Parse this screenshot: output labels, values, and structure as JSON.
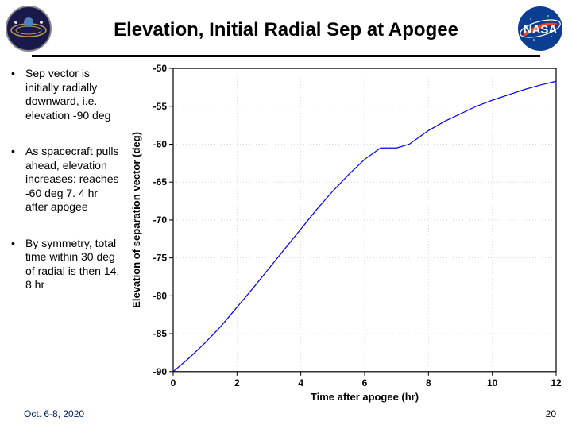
{
  "title": "Elevation, Initial Radial Sep at Apogee",
  "bullets": [
    "Sep vector is initially radially downward, i.e. elevation -90 deg",
    "As spacecraft pulls ahead, elevation increases: reaches -60 deg 7. 4 hr after apogee",
    "By symmetry, total time within 30 deg of radial is then 14. 8 hr"
  ],
  "footer_date": "Oct. 6-8, 2020",
  "page_number": "20",
  "chart": {
    "type": "line",
    "xlabel": "Time after apogee (hr)",
    "ylabel": "Elevation of separation vector (deg)",
    "xlim": [
      0,
      12
    ],
    "ylim": [
      -90,
      -50
    ],
    "xtick_step": 2,
    "ytick_step": 5,
    "line_color": "#0000ff",
    "line_width": 1.2,
    "grid_color": "#cccccc",
    "axis_color": "#000000",
    "background_color": "#ffffff",
    "label_fontsize": 13,
    "tick_fontsize": 12,
    "data": {
      "x": [
        0,
        0.5,
        1,
        1.5,
        2,
        2.5,
        3,
        3.5,
        4,
        4.5,
        5,
        5.5,
        6,
        6.5,
        7,
        7.4,
        8,
        8.5,
        9,
        9.5,
        10,
        10.5,
        11,
        11.5,
        12
      ],
      "y": [
        -90,
        -88.2,
        -86.2,
        -84,
        -81.5,
        -79,
        -76.4,
        -73.8,
        -71.2,
        -68.6,
        -66.2,
        -64,
        -62,
        -60.5,
        -60.5,
        -60,
        -58.2,
        -57,
        -56,
        -55,
        -54.2,
        -53.5,
        -52.8,
        -52.2,
        -51.7
      ]
    }
  },
  "logos": {
    "left_alt": "mission-logo",
    "right_alt": "nasa-logo",
    "nasa_bg": "#0b3d91",
    "nasa_red": "#fc3d21",
    "nasa_text": "NASA"
  }
}
